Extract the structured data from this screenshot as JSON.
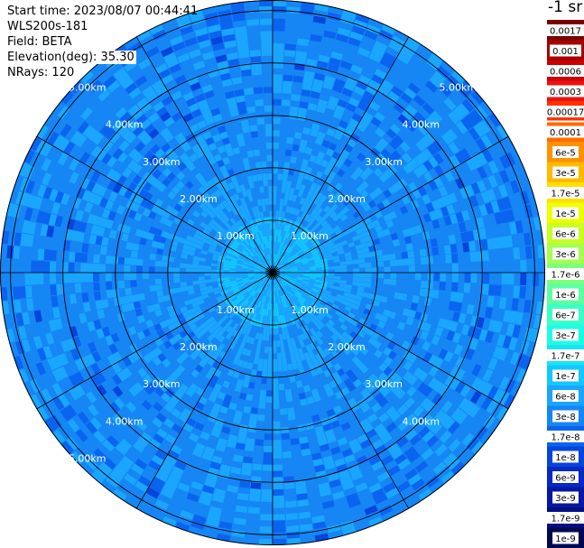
{
  "header": {
    "start_time": "Start time: 2023/08/07 00:44:41",
    "instrument": "WLS200s-181",
    "field": "Field: BETA",
    "elevation": "Elevation(deg): 35.30",
    "nrays": "NRays: 120"
  },
  "colorbar": {
    "unit_label": "-1 sr",
    "bins": [
      {
        "label": "0.0017",
        "color": "#7a0000"
      },
      {
        "label": "0.001",
        "color": "#a80000"
      },
      {
        "label": "0.0006",
        "color": "#cc0000"
      },
      {
        "label": "0.0003",
        "color": "#ee1111"
      },
      {
        "label": "0.00017",
        "color": "#ff3300"
      },
      {
        "label": "0.0001",
        "color": "#ff6a00"
      },
      {
        "label": "6e-5",
        "color": "#ff9200"
      },
      {
        "label": "3e-5",
        "color": "#ffba00"
      },
      {
        "label": "1.7e-5",
        "color": "#ffe000"
      },
      {
        "label": "1e-5",
        "color": "#eeff00"
      },
      {
        "label": "6e-6",
        "color": "#c8ff22"
      },
      {
        "label": "3e-6",
        "color": "#a4ff50"
      },
      {
        "label": "1.7e-6",
        "color": "#7cff7c"
      },
      {
        "label": "1e-6",
        "color": "#5dffa0"
      },
      {
        "label": "6e-7",
        "color": "#3affc6"
      },
      {
        "label": "3e-7",
        "color": "#1dfde6"
      },
      {
        "label": "1.7e-7",
        "color": "#1ae4f4"
      },
      {
        "label": "1e-7",
        "color": "#12c8ff"
      },
      {
        "label": "6e-8",
        "color": "#1aa6ff"
      },
      {
        "label": "3e-8",
        "color": "#1686f4"
      },
      {
        "label": "1.7e-8",
        "color": "#0a64f0"
      },
      {
        "label": "1e-8",
        "color": "#0644dc"
      },
      {
        "label": "6e-9",
        "color": "#0628c4"
      },
      {
        "label": "3e-9",
        "color": "#0418a4"
      },
      {
        "label": "1.7e-9",
        "color": "#040e80"
      },
      {
        "label": "1e-9",
        "color": "#020850"
      }
    ]
  },
  "chart_data": {
    "type": "heatmap",
    "projection": "polar (PPI)",
    "field": "BETA",
    "elevation_deg": 35.3,
    "n_rays": 120,
    "max_range_km": 5.2,
    "spoke_spacing_deg": 30,
    "range_rings_km": [
      1.0,
      2.0,
      3.0,
      4.0,
      5.0
    ],
    "range_ring_labels": [
      "1.00km",
      "2.00km",
      "3.00km",
      "4.00km",
      "5.00km"
    ],
    "range_label_rays": [
      {
        "bearing_deg": -45,
        "labels_km": [
          1.0,
          2.0,
          3.0,
          4.0,
          5.0
        ]
      },
      {
        "bearing_deg": 45,
        "labels_km": [
          1.0,
          2.0,
          3.0,
          4.0,
          5.0
        ]
      },
      {
        "bearing_deg": 135,
        "labels_km": [
          1.0,
          2.0,
          3.0,
          4.0
        ]
      },
      {
        "bearing_deg": -135,
        "labels_km": [
          1.0,
          2.0,
          3.0,
          4.0,
          5.0
        ]
      }
    ],
    "dominant_values_by_range": [
      {
        "range_km": [
          0.0,
          1.5
        ],
        "typical_beta": "1.7e-7 to 6e-8"
      },
      {
        "range_km": [
          1.5,
          3.0
        ],
        "typical_beta": "6e-8 to 3e-8"
      },
      {
        "range_km": [
          3.0,
          5.2
        ],
        "typical_beta": "3e-8 to 1.7e-8"
      }
    ]
  }
}
